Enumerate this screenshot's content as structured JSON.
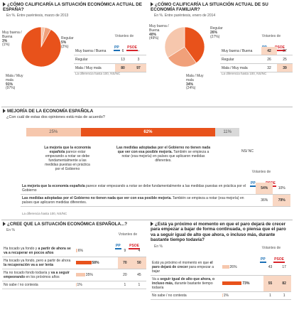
{
  "q1": {
    "title": "¿CÓMO CALIFICARÍA LA SITUACIÓN ECONÓMICA ACTUAL DE ESPAÑA?",
    "subtitle": "En %. Entre paréntesis, marzo de 2013",
    "slices": [
      {
        "label": "Muy buena / Buena",
        "value": "3%",
        "prev": "(1%)"
      },
      {
        "label": "Regular",
        "value": "5%",
        "prev": "(2%)"
      },
      {
        "label": "Mala / Muy mala",
        "value": "91%",
        "prev": "(97%)"
      }
    ],
    "votantes": "Votantes de",
    "parties": [
      "PP",
      "PSOE"
    ],
    "rows": [
      {
        "label": "Muy buena / Buena",
        "pp": "6",
        "psoe": "–"
      },
      {
        "label": "Regular",
        "pp": "13",
        "psoe": "3"
      },
      {
        "label": "Mala / Muy mala",
        "pp": "80",
        "psoe": "97"
      }
    ],
    "note": "La diferencia hasta 100, NS/NC"
  },
  "q2": {
    "title": "¿CÓMO CALIFICARÍA LA SITUACIÓN ACTUAL DE SU ECONOMÍA FAMILIAR?",
    "subtitle": "En %. Entre paréntesis, enero de 2014",
    "slices": [
      {
        "label": "Muy buena / Buena",
        "value": "40%",
        "prev": "(49%)"
      },
      {
        "label": "Regular",
        "value": "26%",
        "prev": "(27%)"
      },
      {
        "label": "Mala / Muy mala",
        "value": "34%",
        "prev": "(24%)"
      }
    ],
    "votantes": "Votantes de",
    "parties": [
      "PP",
      "PSOE"
    ],
    "rows": [
      {
        "label": "Muy buena / Buena",
        "pp": "42",
        "psoe": "37"
      },
      {
        "label": "Regular",
        "pp": "26",
        "psoe": "25"
      },
      {
        "label": "Mala / Muy mala",
        "pp": "32",
        "psoe": "39"
      }
    ],
    "note": "La diferencia hasta 100, NS/NC"
  },
  "q3": {
    "section": "MEJORÍA DE LA ECONOMÍA ESPAÑOLA",
    "question": "¿Con cuál de estas dos opiniones está más de acuerdo?",
    "segments": [
      "25%",
      "62%",
      "11%"
    ],
    "opt1_bold": "La mejoría que la economía española",
    "opt1_rest": "parece estar empezando a notar se debe fundamentalmente a las medidas puestas en práctica por el Gobierno",
    "opt2_bold": "Las medidas adoptadas por el Gobierno no tienen nada que ver con esa posible mejoría.",
    "opt2_rest": "También se empieza a notar (esa mejoría) en países que aplicaron medidas diferentes.",
    "nsnc": "NS/ NC",
    "votantes": "Votantes de",
    "parties": [
      "PP",
      "PSOE"
    ],
    "rows": [
      {
        "bold": "La mejoría que la economía española",
        "rest": "parece estar empezando a notar se debe fundamentalmente a las medidas puestas en práctica por el Gobierno",
        "pp": "54%",
        "psoe": "10%"
      },
      {
        "bold": "Las medidas adoptadas por el Gobierno no tienen nada que ver con esa posible mejoría.",
        "rest": "También se empieza a notar (esa mejoría) en países que aplicaron medidas diferentes.",
        "pp": "36%",
        "psoe": "79%"
      }
    ],
    "note": "La diferencia hasta 100, NS/NC"
  },
  "q4": {
    "title": "¿CREE QUE LA SITUACIÓN ECONÓMICA ESPAÑOLA...?",
    "subtitle": "En %",
    "votantes": "Votantes de",
    "parties": [
      "PP",
      "PSOE"
    ],
    "rows": [
      {
        "pre": "Ha tocado ya fondo y",
        "bold": "a partir de ahora se va a recuperar en pocos años",
        "post": "",
        "value": "6%",
        "pp": "9",
        "psoe": "4"
      },
      {
        "pre": "Ha tocado ya fondo, pero a partir de ahora",
        "bold": "la recuperación va a ser lenta",
        "post": "",
        "value": "58%",
        "pp": "70",
        "psoe": "50"
      },
      {
        "pre": "Ha no tocado fondo todavía y",
        "bold": "va a seguir empeorando",
        "post": "en los próximos años",
        "value": "35%",
        "pp": "20",
        "psoe": "45"
      },
      {
        "pre": "No sabe / no contesta",
        "bold": "",
        "post": "",
        "value": "1%",
        "pp": "1",
        "psoe": "1"
      }
    ]
  },
  "q5": {
    "title": "¿Está ya próximo el momento en que el paro dejará de crecer para empezar a bajar de forma continuada, o piensa que el paro va a seguir igual de alto que ahora, o incluso más, durante bastante tiempo todavía?",
    "subtitle": "En %",
    "votantes": "Votantes de",
    "parties": [
      "PP",
      "PSOE"
    ],
    "rows": [
      {
        "pre": "Está ya próximo el momento en que",
        "bold": "el paro dejará de crecer",
        "post": "para empezar a bajar",
        "value": "26%",
        "pp": "43",
        "psoe": "17"
      },
      {
        "pre": "Va a",
        "bold": "seguir igual de alto que ahora, o incluso más,",
        "post": "durante bastante tiempo todavía",
        "value": "73%",
        "pp": "55",
        "psoe": "82"
      },
      {
        "pre": "No sabe / no contesta",
        "bold": "",
        "post": "",
        "value": "1%",
        "pp": "1",
        "psoe": "1"
      }
    ]
  },
  "colors": {
    "accent": "#e8521b",
    "light": "#f6c7ad",
    "highlight": "#f9d7c3",
    "pp": "#1a6fb5",
    "psoe": "#d8232a",
    "grey": "#c9c9c9"
  },
  "chart_data": [
    {
      "type": "pie",
      "title": "¿CÓMO CALIFICARÍA LA SITUACIÓN ECONÓMICA ACTUAL DE ESPAÑA?",
      "categories": [
        "Muy buena / Buena",
        "Regular",
        "Mala / Muy mala"
      ],
      "values": [
        3,
        5,
        91
      ]
    },
    {
      "type": "pie",
      "title": "¿CÓMO CALIFICARÍA LA SITUACIÓN ACTUAL DE SU ECONOMÍA FAMILIAR?",
      "categories": [
        "Muy buena / Buena",
        "Regular",
        "Mala / Muy mala"
      ],
      "values": [
        40,
        26,
        34
      ]
    },
    {
      "type": "bar",
      "title": "MEJORÍA DE LA ECONOMÍA ESPAÑOLA",
      "categories": [
        "Gobierno",
        "No tiene que ver",
        "NS/NC"
      ],
      "values": [
        25,
        62,
        11
      ]
    },
    {
      "type": "bar",
      "title": "¿CREE QUE LA SITUACIÓN ECONÓMICA ESPAÑOLA...?",
      "values": [
        6,
        58,
        35,
        1
      ]
    },
    {
      "type": "bar",
      "title": "Paro",
      "values": [
        26,
        73,
        1
      ]
    }
  ]
}
